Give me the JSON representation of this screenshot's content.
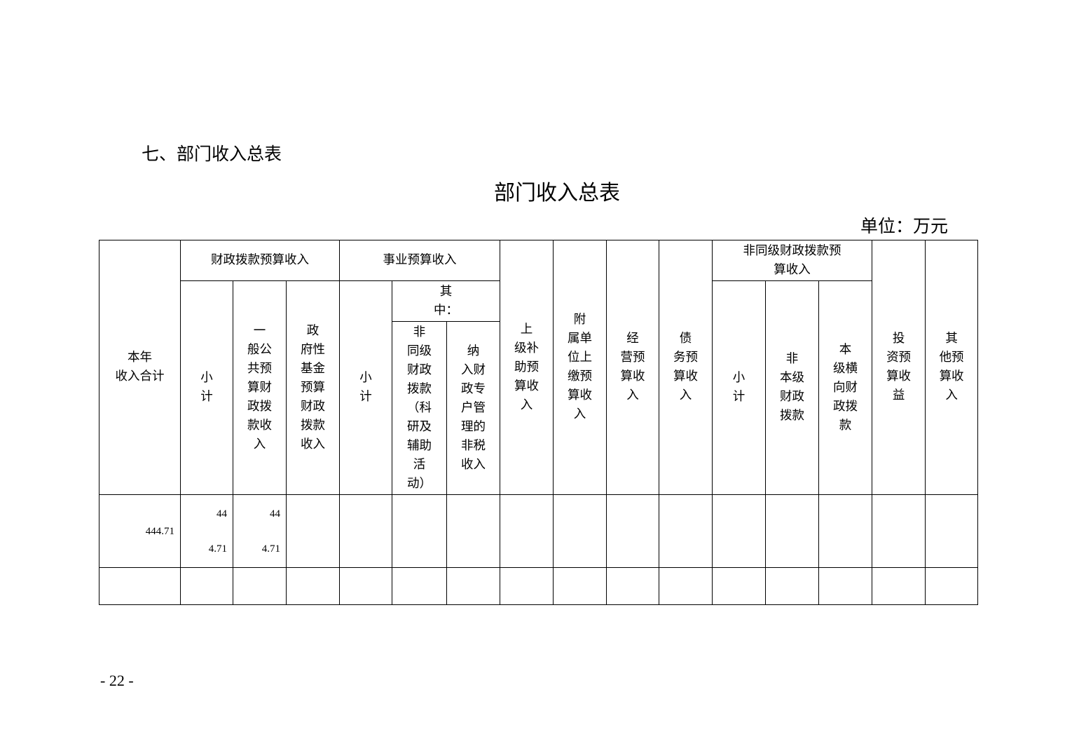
{
  "section_heading": "七、部门收入总表",
  "title": "部门收入总表",
  "unit": "单位：万元",
  "headers": {
    "total": "本年\n收入合计",
    "fiscal_group": "财政拨款预算收入",
    "fiscal_subtotal": "小\n计",
    "fiscal_general": "一\n般公\n共预\n算财\n政拨\n款收\n入",
    "fiscal_gov_fund": "政\n府性\n基金\n预算\n财政\n拨款\n收入",
    "career_group": "事业预算收入",
    "career_subtotal": "小\n计",
    "career_of_which": "其\n中：",
    "career_nonsame": "非\n同级\n财政\n拨款\n（科\n研及\n辅助\n活\n动）",
    "career_special": "纳\n入财\n政专\n户管\n理的\n非税\n收入",
    "superior_subsidy": "上\n级补\n助预\n算收\n入",
    "affiliated": "附\n属单\n位上\n缴预\n算收\n入",
    "operating": "经\n营预\n算收\n入",
    "debt": "债\n务预\n算收\n入",
    "nonsame_group": "非同级财政拨款预\n算收入",
    "nonsame_subtotal": "小\n计",
    "nonsame_nonlocal": "非\n本级\n财政\n拨款",
    "nonsame_horizontal": "本\n级横\n向财\n政拨\n款",
    "investment": "投\n资预\n算收\n益",
    "other": "其\n他预\n算收\n入"
  },
  "rows": [
    [
      "444.71",
      "44\n4.71",
      "44\n4.71",
      "",
      "",
      "",
      "",
      "",
      "",
      "",
      "",
      "",
      "",
      "",
      "",
      ""
    ],
    [
      "",
      "",
      "",
      "",
      "",
      "",
      "",
      "",
      "",
      "",
      "",
      "",
      "",
      "",
      "",
      ""
    ]
  ],
  "page_number": "- 22 -"
}
